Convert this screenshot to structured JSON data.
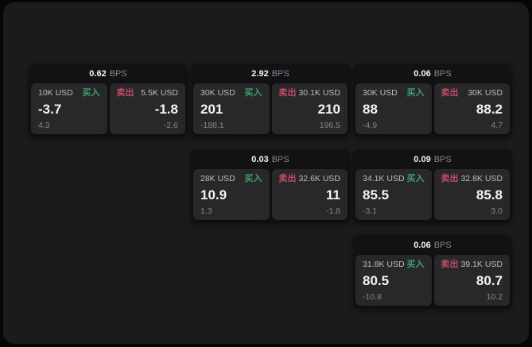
{
  "theme": {
    "page_bg": "#060607",
    "panel_bg": "#1b1b1d",
    "card_bg": "#121214",
    "tile_bg": "#28282b",
    "text_primary": "#f4f4f5",
    "text_secondary": "#bdbdc0",
    "text_muted": "#86868a",
    "buy_color": "#3ca06a",
    "sell_color": "#c14b62"
  },
  "labels": {
    "bps_unit": "BPS",
    "buy": "买入",
    "sell": "卖出"
  },
  "cards": [
    {
      "bps": "0.62",
      "col": 1,
      "row": 1,
      "buy": {
        "size": "10K USD",
        "value": "-3.7",
        "delta": "4.3"
      },
      "sell": {
        "size": "5.5K USD",
        "value": "-1.8",
        "delta": "-2.6"
      }
    },
    {
      "bps": "2.92",
      "col": 2,
      "row": 1,
      "buy": {
        "size": "30K USD",
        "value": "201",
        "delta": "-188.1"
      },
      "sell": {
        "size": "30.1K USD",
        "value": "210",
        "delta": "196.5"
      }
    },
    {
      "bps": "0.06",
      "col": 3,
      "row": 1,
      "buy": {
        "size": "30K USD",
        "value": "88",
        "delta": "-4.9"
      },
      "sell": {
        "size": "30K USD",
        "value": "88.2",
        "delta": "4.7"
      }
    },
    {
      "bps": "0.03",
      "col": 2,
      "row": 2,
      "buy": {
        "size": "28K USD",
        "value": "10.9",
        "delta": "1.3"
      },
      "sell": {
        "size": "32.6K USD",
        "value": "11",
        "delta": "-1.8"
      }
    },
    {
      "bps": "0.09",
      "col": 3,
      "row": 2,
      "buy": {
        "size": "34.1K USD",
        "value": "85.5",
        "delta": "-3.1"
      },
      "sell": {
        "size": "32.8K USD",
        "value": "85.8",
        "delta": "3.0"
      }
    },
    {
      "bps": "0.06",
      "col": 3,
      "row": 3,
      "buy": {
        "size": "31.8K USD",
        "value": "80.5",
        "delta": "-10.8"
      },
      "sell": {
        "size": "39.1K USD",
        "value": "80.7",
        "delta": "10.2"
      }
    }
  ]
}
